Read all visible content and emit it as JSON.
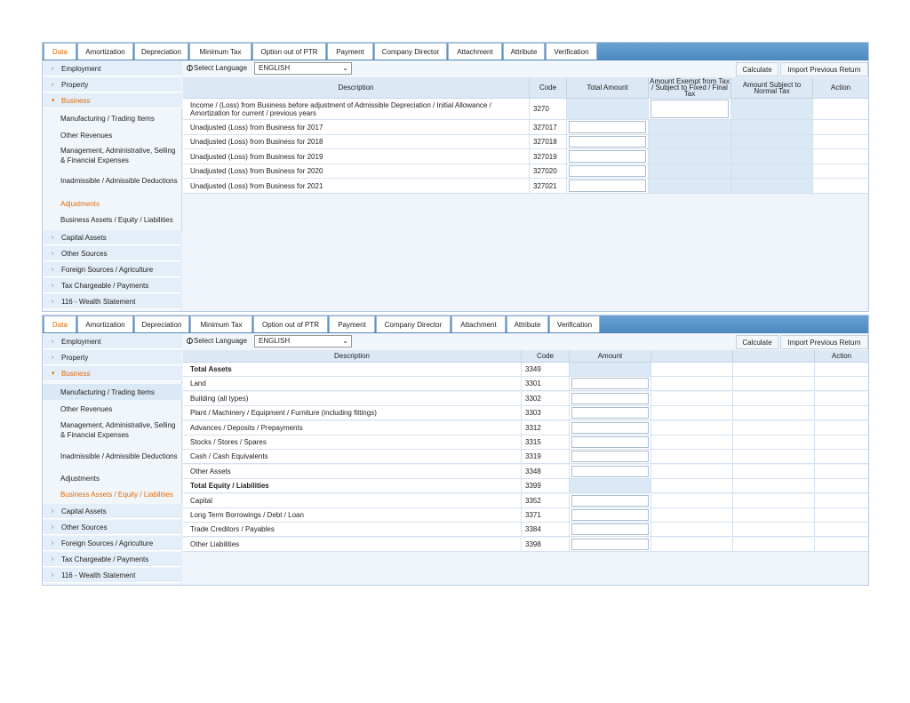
{
  "tabs": [
    "Data",
    "Amortization",
    "Depreciation",
    "Minimum Tax",
    "Option out of PTR",
    "Payment",
    "Company Director",
    "Attachment",
    "Attribute",
    "Verification"
  ],
  "sidebar": {
    "items": [
      "Employment",
      "Property",
      "Business",
      "Capital Assets",
      "Other Sources",
      "Foreign Sources / Agriculture",
      "Tax Chargeable / Payments",
      "116 - Wealth Statement"
    ],
    "business_sub": [
      "Manufacturing / Trading Items",
      "Other Revenues",
      "Management, Administrative, Selling & Financial Expenses",
      "Inadmissible / Admissible Deductions",
      "Adjustments",
      "Business Assets / Equity / Liabilities"
    ]
  },
  "toolbar": {
    "language_label": "Select Language",
    "language_value": "ENGLISH",
    "calculate": "Calculate",
    "import": "Import Previous Return"
  },
  "adjustments": {
    "headers": [
      "Description",
      "Code",
      "Total Amount",
      "Amount Exempt from Tax / Subject to Fixed / Final Tax",
      "Amount Subject to Normal Tax",
      "Action"
    ],
    "rows": [
      {
        "desc": "Income / (Loss) from Business before adjustment of Admissible Depreciation / Initial Allowance / Amortization for current / previous years",
        "code": "3270"
      },
      {
        "desc": "Unadjusted (Loss) from Business for 2017",
        "code": "327017"
      },
      {
        "desc": "Unadjusted (Loss) from Business for 2018",
        "code": "327018"
      },
      {
        "desc": "Unadjusted (Loss) from Business for 2019",
        "code": "327019"
      },
      {
        "desc": "Unadjusted (Loss) from Business for 2020",
        "code": "327020"
      },
      {
        "desc": "Unadjusted (Loss) from Business for 2021",
        "code": "327021"
      }
    ]
  },
  "assets": {
    "headers": [
      "Description",
      "Code",
      "Amount",
      "Action"
    ],
    "rows": [
      {
        "desc": "Total Assets",
        "code": "3349"
      },
      {
        "desc": "Land",
        "code": "3301"
      },
      {
        "desc": "Building (all types)",
        "code": "3302"
      },
      {
        "desc": "Plant / Machinery / Equipment / Furniture (including fittings)",
        "code": "3303"
      },
      {
        "desc": "Advances / Deposits / Prepayments",
        "code": "3312"
      },
      {
        "desc": "Stocks / Stores / Spares",
        "code": "3315"
      },
      {
        "desc": "Cash / Cash Equivalents",
        "code": "3319"
      },
      {
        "desc": "Other Assets",
        "code": "3348"
      },
      {
        "desc": "Total Equity / Liabilities",
        "code": "3399"
      },
      {
        "desc": "Capital",
        "code": "3352"
      },
      {
        "desc": "Long Term Borrowings / Debt / Loan",
        "code": "3371"
      },
      {
        "desc": "Trade Creditors / Payables",
        "code": "3384"
      },
      {
        "desc": "Other Liabilities",
        "code": "3398"
      }
    ]
  }
}
